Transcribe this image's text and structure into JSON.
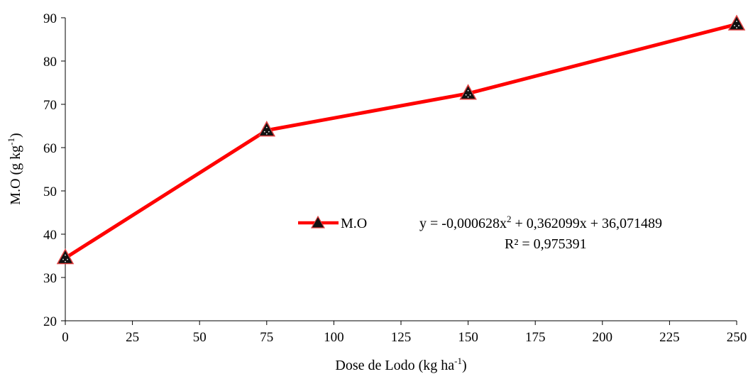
{
  "chart_data": {
    "type": "line",
    "x": [
      0,
      75,
      150,
      250
    ],
    "series": [
      {
        "name": "M.O",
        "values": [
          34.5,
          64.0,
          72.5,
          88.5
        ],
        "color": "#ff0000",
        "marker": "triangle-up"
      }
    ],
    "xlabel": {
      "main": "Dose de Lodo (kg ha",
      "sup": "-1",
      "end": ")"
    },
    "ylabel": {
      "main": "M.O (g kg",
      "sup": "-1",
      "end": ")"
    },
    "xlim": [
      0,
      250
    ],
    "ylim": [
      20,
      90
    ],
    "xticks": [
      0,
      25,
      50,
      75,
      100,
      125,
      150,
      175,
      200,
      225,
      250
    ],
    "yticks": [
      20,
      30,
      40,
      50,
      60,
      70,
      80,
      90
    ],
    "grid": false,
    "legend": "center-right",
    "annotations": {
      "equation": {
        "a": "y = -0,000628x",
        "sup": "2",
        "b": " + 0,362099x + 36,071489"
      },
      "r2": "R² = 0,975391"
    }
  }
}
